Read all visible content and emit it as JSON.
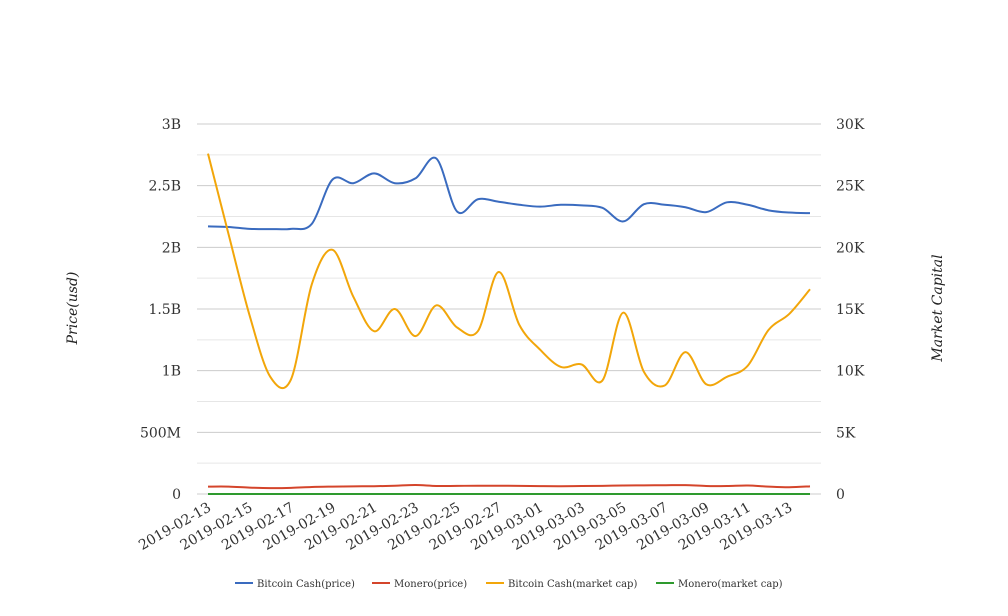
{
  "chart_data": {
    "type": "line",
    "title": "",
    "ylabel_left": "Price(usd)",
    "ylabel_right": "Market Capital",
    "y_left": {
      "min": 0,
      "max": 3000000000,
      "ticks": [
        0,
        500000000,
        1000000000,
        1500000000,
        2000000000,
        2500000000,
        3000000000
      ],
      "tick_labels": [
        "0",
        "500M",
        "1B",
        "1.5B",
        "2B",
        "2.5B",
        "3B"
      ]
    },
    "y_right": {
      "min": 0,
      "max": 30000,
      "ticks": [
        0,
        5000,
        10000,
        15000,
        20000,
        25000,
        30000
      ],
      "tick_labels": [
        "0",
        "5K",
        "10K",
        "15K",
        "20K",
        "25K",
        "30K"
      ]
    },
    "x": [
      "2019-02-13",
      "2019-02-14",
      "2019-02-15",
      "2019-02-16",
      "2019-02-17",
      "2019-02-18",
      "2019-02-19",
      "2019-02-20",
      "2019-02-21",
      "2019-02-22",
      "2019-02-23",
      "2019-02-24",
      "2019-02-25",
      "2019-02-26",
      "2019-02-27",
      "2019-02-28",
      "2019-03-01",
      "2019-03-02",
      "2019-03-03",
      "2019-03-04",
      "2019-03-05",
      "2019-03-06",
      "2019-03-07",
      "2019-03-08",
      "2019-03-09",
      "2019-03-10",
      "2019-03-11",
      "2019-03-12",
      "2019-03-13",
      "2019-03-14"
    ],
    "x_tick_labels": [
      "2019-02-13",
      "2019-02-15",
      "2019-02-17",
      "2019-02-19",
      "2019-02-21",
      "2019-02-23",
      "2019-02-25",
      "2019-02-27",
      "2019-03-01",
      "2019-03-03",
      "2019-03-05",
      "2019-03-07",
      "2019-03-09",
      "2019-03-11",
      "2019-03-13"
    ],
    "grid": true,
    "legend_position": "bottom",
    "series": [
      {
        "name": "Bitcoin Cash(price)",
        "axis": "left",
        "color": "#3a6bbf",
        "values": [
          2170000000,
          2165000000,
          2150000000,
          2148000000,
          2150000000,
          2190000000,
          2550000000,
          2520000000,
          2600000000,
          2520000000,
          2560000000,
          2720000000,
          2290000000,
          2390000000,
          2370000000,
          2345000000,
          2330000000,
          2345000000,
          2340000000,
          2320000000,
          2210000000,
          2350000000,
          2345000000,
          2325000000,
          2285000000,
          2365000000,
          2345000000,
          2300000000,
          2282000000,
          2277000000
        ]
      },
      {
        "name": "Monero(price)",
        "axis": "left",
        "color": "#d4452b",
        "values": [
          60000000,
          60000000,
          52000000,
          48000000,
          50000000,
          57000000,
          60000000,
          62000000,
          63000000,
          67000000,
          73000000,
          65000000,
          66000000,
          67000000,
          67000000,
          66000000,
          64000000,
          63000000,
          65000000,
          66000000,
          69000000,
          70000000,
          71000000,
          72000000,
          65000000,
          65000000,
          69000000,
          60000000,
          55000000,
          62000000
        ]
      },
      {
        "name": "Bitcoin Cash(market cap)",
        "axis": "right",
        "color": "#f2a60a",
        "values": [
          27600,
          21000,
          14500,
          9500,
          9300,
          17000,
          19800,
          16000,
          13200,
          15000,
          12800,
          15300,
          13500,
          13200,
          18000,
          13700,
          11700,
          10300,
          10500,
          9200,
          14700,
          9900,
          8800,
          11500,
          8900,
          9500,
          10400,
          13300,
          14600,
          16600
        ]
      },
      {
        "name": "Monero(market cap)",
        "axis": "right",
        "color": "#2e9a2e",
        "values": [
          5,
          5,
          5,
          5,
          5,
          5,
          5,
          5,
          5,
          5,
          5,
          5,
          5,
          5,
          5,
          5,
          5,
          5,
          5,
          5,
          5,
          5,
          5,
          5,
          5,
          5,
          5,
          5,
          5,
          5
        ]
      }
    ]
  }
}
